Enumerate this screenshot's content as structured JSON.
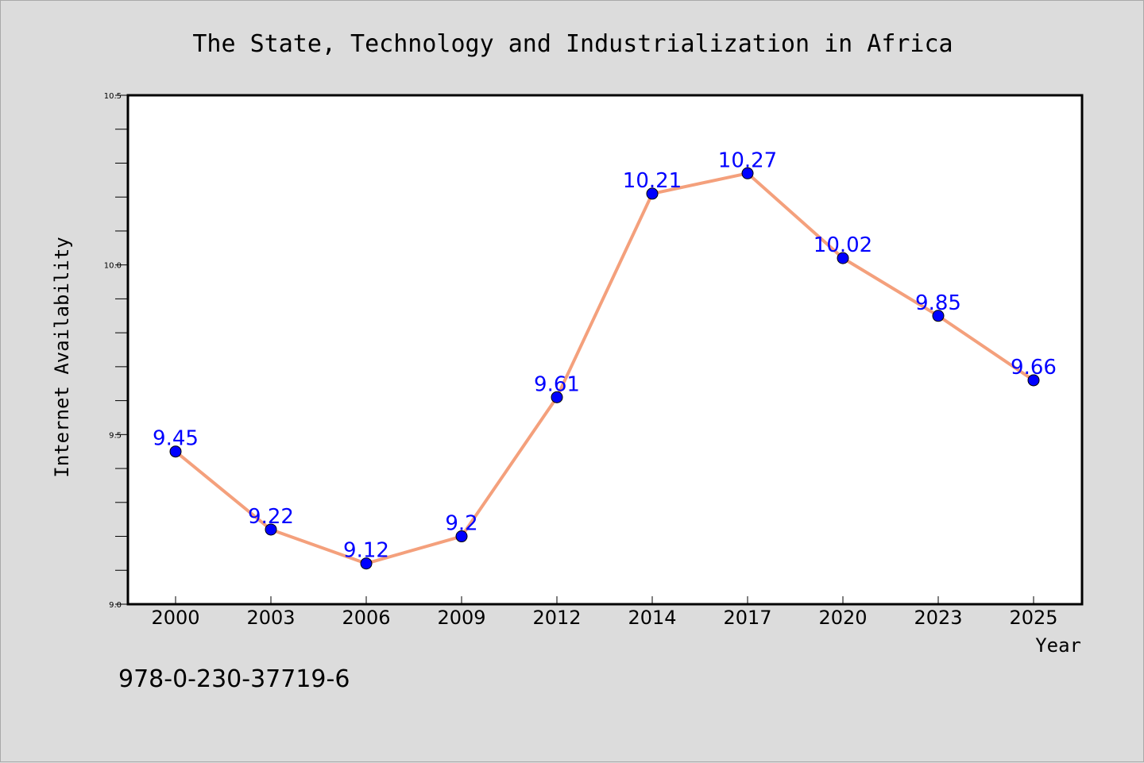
{
  "chart_data": {
    "type": "line",
    "title": "The State, Technology and Industrialization in Africa",
    "xlabel": "Year",
    "ylabel": "Internet Availability",
    "categories": [
      "2000",
      "2003",
      "2006",
      "2009",
      "2012",
      "2014",
      "2017",
      "2020",
      "2023",
      "2025"
    ],
    "series": [
      {
        "values": [
          9.45,
          9.22,
          9.12,
          9.2,
          9.61,
          10.21,
          10.27,
          10.02,
          9.85,
          9.66
        ],
        "labels": [
          "9.45",
          "9.22",
          "9.12",
          "9.2",
          "9.61",
          "10.21",
          "10.27",
          "10.02",
          "9.85",
          "9.66"
        ],
        "line_color": "#f4a07c",
        "marker_color": "#0000ff"
      }
    ],
    "ylim": [
      9.0,
      10.5
    ],
    "yticks": [
      "9.0",
      "9.5",
      "10.0",
      "10.5"
    ],
    "yticks_values": [
      9.0,
      9.5,
      10.0,
      10.5
    ],
    "grid": false,
    "legend": "none"
  },
  "footer": {
    "isbn": "978-0-230-37719-6"
  },
  "colors": {
    "background": "#dcdcdc",
    "plot_background": "#ffffff",
    "line": "#f4a07c",
    "marker": "#0000ff",
    "data_label": "#0000ff"
  }
}
